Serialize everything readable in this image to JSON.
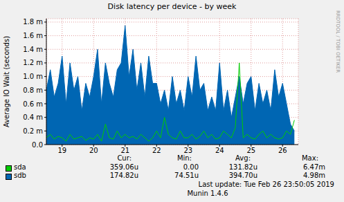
{
  "chart_data": {
    "type": "line",
    "title": "Disk latency per device - by week",
    "y_label": "Average IO Wait (seconds)",
    "watermark": "RRDTOOL / TOBI OETIKER",
    "x": [
      18.5,
      18.625,
      18.75,
      18.875,
      19,
      19.125,
      19.25,
      19.375,
      19.5,
      19.625,
      19.75,
      19.875,
      20,
      20.125,
      20.25,
      20.375,
      20.5,
      20.625,
      20.75,
      20.875,
      21,
      21.125,
      21.25,
      21.375,
      21.5,
      21.625,
      21.75,
      21.875,
      22,
      22.125,
      22.25,
      22.375,
      22.5,
      22.625,
      22.75,
      22.875,
      23,
      23.125,
      23.25,
      23.375,
      23.5,
      23.625,
      23.75,
      23.875,
      24,
      24.125,
      24.25,
      24.375,
      24.5,
      24.625,
      24.75,
      24.875,
      25,
      25.125,
      25.25,
      25.375,
      25.5,
      25.625,
      25.75,
      25.875,
      26,
      26.125,
      26.25,
      26.375
    ],
    "xlim": [
      18.5,
      26.5
    ],
    "xticks": [
      19,
      20,
      21,
      22,
      23,
      24,
      25,
      26
    ],
    "ylim": [
      0,
      0.00185
    ],
    "yticks": [
      {
        "value": 0,
        "label": "0.0"
      },
      {
        "value": 0.0002,
        "label": "0.2 m"
      },
      {
        "value": 0.0004,
        "label": "0.4 m"
      },
      {
        "value": 0.0006,
        "label": "0.6 m"
      },
      {
        "value": 0.0008,
        "label": "0.8 m"
      },
      {
        "value": 0.001,
        "label": "1.0 m"
      },
      {
        "value": 0.0012,
        "label": "1.2 m"
      },
      {
        "value": 0.0014,
        "label": "1.4 m"
      },
      {
        "value": 0.0016,
        "label": "1.6 m"
      },
      {
        "value": 0.0018,
        "label": "1.8 m"
      }
    ],
    "grid": true,
    "stat_labels": [
      "Cur:",
      "Min:",
      "Avg:",
      "Max:"
    ],
    "series": [
      {
        "name": "sdb",
        "color": "#0066b3",
        "type": "area",
        "stats": [
          "174.82u",
          "74.51u",
          "394.70u",
          "4.98m"
        ],
        "values": [
          0.0008,
          0.0011,
          0.0007,
          0.0009,
          0.0013,
          0.0006,
          0.0012,
          0.0008,
          0.001,
          0.0005,
          0.0009,
          0.0007,
          0.001,
          0.0014,
          0.0006,
          0.0012,
          0.0009,
          0.0007,
          0.0011,
          0.0012,
          0.00175,
          0.001,
          0.0014,
          0.0008,
          0.0012,
          0.0007,
          0.0013,
          0.0009,
          0.0009,
          0.0006,
          0.0008,
          0.0005,
          0.001,
          0.0006,
          0.0008,
          0.0005,
          0.001,
          0.0007,
          0.0013,
          0.0008,
          0.0009,
          0.0005,
          0.0007,
          0.0005,
          0.0012,
          0.0005,
          0.0008,
          0.0004,
          0.0007,
          0.001,
          0.0006,
          0.0009,
          0.001,
          0.0005,
          0.0009,
          0.0006,
          0.0008,
          0.0005,
          0.0011,
          0.0007,
          0.0009,
          0.0006,
          0.0003,
          0.0002
        ]
      },
      {
        "name": "sda",
        "color": "#00cc00",
        "type": "line",
        "stats": [
          "359.06u",
          "0.00",
          "131.82u",
          "6.47m"
        ],
        "values": [
          0.0001,
          0.00015,
          8e-05,
          0.00012,
          0.0001,
          5e-05,
          0.00015,
          8e-05,
          0.0001,
          0.00012,
          6e-05,
          0.0001,
          8e-05,
          0.00015,
          5e-05,
          0.0003,
          0.0001,
          8e-05,
          0.0002,
          0.0001,
          0.00015,
          0.0001,
          0.00012,
          8e-05,
          0.00015,
          0.0001,
          5e-05,
          0.0001,
          0.0002,
          0.0001,
          0.0004,
          0.00015,
          0.0001,
          8e-05,
          0.0002,
          0.0001,
          0.0001,
          0.00015,
          8e-05,
          0.00012,
          0.0002,
          0.0001,
          0.00015,
          8e-05,
          0.0001,
          0.0002,
          0.00015,
          0.0001,
          0.00025,
          0.0012,
          0.0001,
          0.00015,
          0.0001,
          8e-05,
          0.00015,
          0.0002,
          0.0001,
          0.00015,
          0.0001,
          8e-05,
          0.0001,
          0.0002,
          0.00015,
          0.00036
        ]
      }
    ],
    "legend_order": [
      "sda",
      "sdb"
    ],
    "footer": "Last update:  Tue Feb 26 23:50:05 2019",
    "credit": "Munin 1.4.6"
  }
}
